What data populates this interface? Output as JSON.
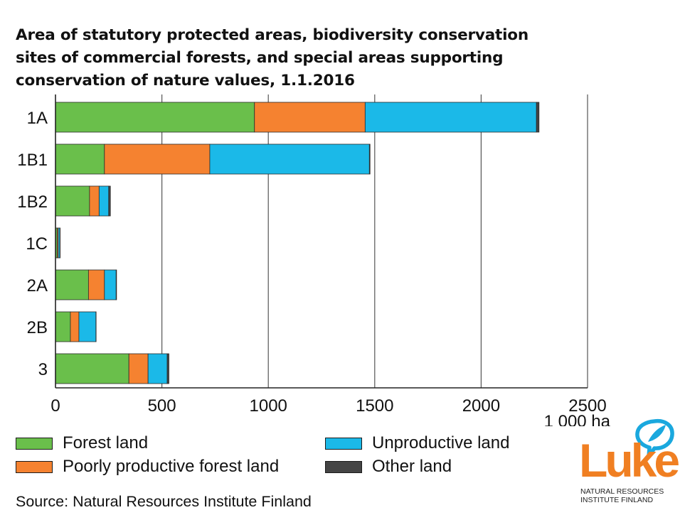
{
  "title_lines": [
    "Area of statutory protected areas, biodiversity conservation",
    "sites of commercial forests, and special areas supporting",
    "conservation of nature values, 1.1.2016"
  ],
  "source": "Source: Natural Resources Institute Finland",
  "logo": {
    "word": "Luke",
    "sub_line1": "NATURAL RESOURCES",
    "sub_line2": "INSTITUTE FINLAND",
    "leaf_icon": "speech-bubble-leaf-icon"
  },
  "legend": {
    "forest": "Forest land",
    "poorly": "Poorly productive forest land",
    "unproductive": "Unproductive land",
    "other": "Other land"
  },
  "colors": {
    "forest": "#6abf4b",
    "poorly": "#f58230",
    "unproductive": "#1bb9e8",
    "other": "#444444",
    "grid": "#555555",
    "axis": "#222222",
    "luke_orange": "#f07f22",
    "luke_blue": "#1aa8de"
  },
  "chart_data": {
    "type": "bar",
    "orientation": "horizontal",
    "stacked": true,
    "title": "Area of statutory protected areas, biodiversity conservation sites of commercial forests, and special areas supporting conservation of nature values, 1.1.2016",
    "categories": [
      "1A",
      "1B1",
      "1B2",
      "1C",
      "2A",
      "2B",
      "3"
    ],
    "series": [
      {
        "name": "Forest land",
        "key": "forest",
        "values": [
          935,
          230,
          160,
          8,
          155,
          70,
          345
        ]
      },
      {
        "name": "Poorly productive forest land",
        "key": "poorly",
        "values": [
          520,
          495,
          45,
          5,
          75,
          40,
          90
        ]
      },
      {
        "name": "Unproductive land",
        "key": "unproductive",
        "values": [
          805,
          750,
          45,
          8,
          55,
          80,
          90
        ]
      },
      {
        "name": "Other land",
        "key": "other",
        "values": [
          12,
          3,
          8,
          1,
          2,
          1,
          8
        ]
      }
    ],
    "xlim": [
      0,
      2500
    ],
    "xticks": [
      0,
      500,
      1000,
      1500,
      2000,
      2500
    ],
    "xtick_labels": [
      "0",
      "500",
      "1000",
      "1500",
      "2000",
      "2500"
    ],
    "x_unit_label": "1 000 ha",
    "grid": "vertical",
    "legend_position": "bottom"
  }
}
